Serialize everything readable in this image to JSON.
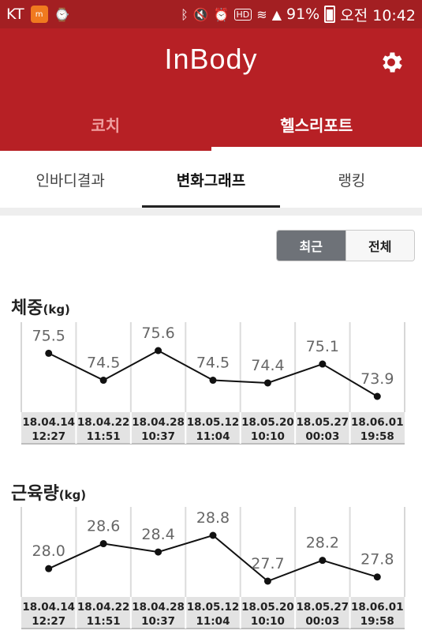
{
  "status_bar": {
    "carrier": "KT",
    "battery": "91%",
    "time": "오전 10:42",
    "hd": "HD"
  },
  "app": {
    "logo": "InBody",
    "icons": {
      "settings": "gear-icon"
    },
    "colors": {
      "brand": "#b72025",
      "status_bar": "#a31f22",
      "tab_inactive": "#f0a0a0"
    }
  },
  "top_tabs": [
    {
      "label": "코치",
      "active": false
    },
    {
      "label": "헬스리포트",
      "active": true
    }
  ],
  "sub_tabs": [
    {
      "label": "인바디결과",
      "active": false
    },
    {
      "label": "변화그래프",
      "active": true
    },
    {
      "label": "랭킹",
      "active": false
    }
  ],
  "range_toggle": {
    "recent": "최근",
    "all": "전체",
    "selected": "최근"
  },
  "chart_data": [
    {
      "type": "line",
      "title": "체중",
      "unit": "(kg)",
      "x": [
        "18.04.14 12:27",
        "18.04.22 11:51",
        "18.04.28 10:37",
        "18.05.12 11:04",
        "18.05.20 10:10",
        "18.05.27 00:03",
        "18.06.01 19:58"
      ],
      "x_dates": [
        "18.04.14",
        "18.04.22",
        "18.04.28",
        "18.05.12",
        "18.05.20",
        "18.05.27",
        "18.06.01"
      ],
      "x_times": [
        "12:27",
        "11:51",
        "10:37",
        "11:04",
        "10:10",
        "00:03",
        "19:58"
      ],
      "values": [
        75.5,
        74.5,
        75.6,
        74.5,
        74.4,
        75.1,
        73.9
      ],
      "labels": [
        "75.5",
        "74.5",
        "75.6",
        "74.5",
        "74.4",
        "75.1",
        "73.9"
      ],
      "grid": true
    },
    {
      "type": "line",
      "title": "근육량",
      "unit": "(kg)",
      "x": [
        "18.04.14 12:27",
        "18.04.22 11:51",
        "18.04.28 10:37",
        "18.05.12 11:04",
        "18.05.20 10:10",
        "18.05.27 00:03",
        "18.06.01 19:58"
      ],
      "x_dates": [
        "18.04.14",
        "18.04.22",
        "18.04.28",
        "18.05.12",
        "18.05.20",
        "18.05.27",
        "18.06.01"
      ],
      "x_times": [
        "12:27",
        "11:51",
        "10:37",
        "11:04",
        "10:10",
        "00:03",
        "19:58"
      ],
      "values": [
        28.0,
        28.6,
        28.4,
        28.8,
        27.7,
        28.2,
        27.8
      ],
      "labels": [
        "28.0",
        "28.6",
        "28.4",
        "28.8",
        "27.7",
        "28.2",
        "27.8"
      ],
      "grid": true
    }
  ]
}
